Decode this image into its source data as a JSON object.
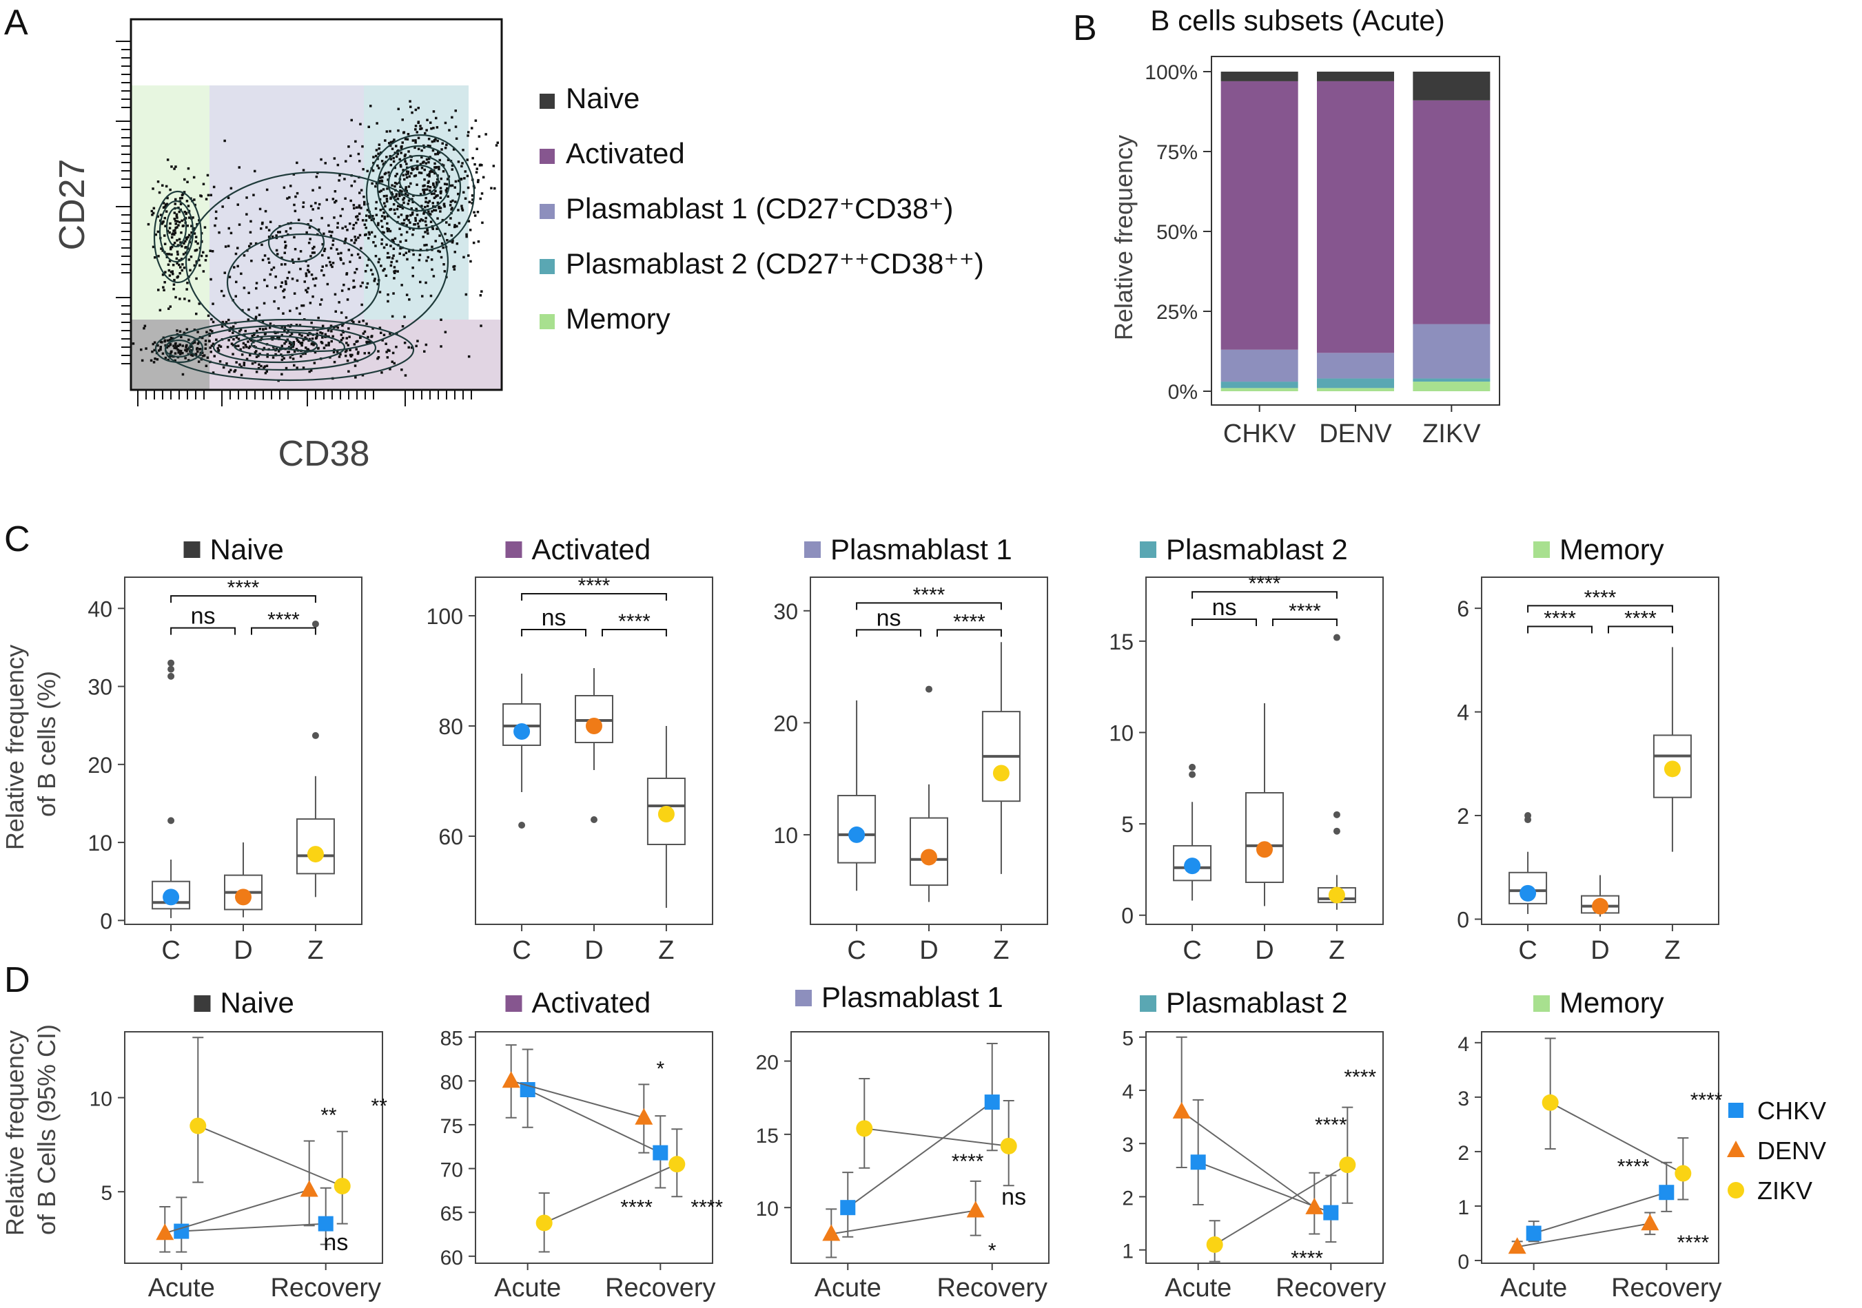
{
  "panel_letters": {
    "a": "A",
    "b": "B",
    "c": "C",
    "d": "D"
  },
  "colors": {
    "naive": "#3b3b3b",
    "activated": "#86568f",
    "plasmablast1": "#8d8fbd",
    "plasmablast2": "#5aa7b3",
    "memory": "#a8e08f",
    "chkv": "#1e8fef",
    "denv": "#f07b17",
    "zikv": "#fad314",
    "box": "#555555",
    "outlier": "#555555"
  },
  "chart_data": [
    {
      "id": "A",
      "type": "scatter",
      "title": "",
      "xlabel": "CD38",
      "ylabel": "CD27",
      "legend": {
        "placement": "right",
        "items": [
          {
            "key": "naive",
            "label": "Naive"
          },
          {
            "key": "activated",
            "label": "Activated"
          },
          {
            "key": "plasmablast1",
            "label": "Plasmablast 1 (CD27⁺CD38⁺)"
          },
          {
            "key": "plasmablast2",
            "label": "Plasmablast 2 (CD27⁺⁺CD38⁺⁺)"
          },
          {
            "key": "memory",
            "label": "Memory"
          }
        ]
      }
    },
    {
      "id": "B",
      "type": "bar",
      "stacked": true,
      "title": "B cells subsets (Acute)",
      "ylabel": "Relative frequency",
      "categories": [
        "CHKV",
        "DENV",
        "ZIKV"
      ],
      "yticks": [
        "0%",
        "25%",
        "50%",
        "75%",
        "100%"
      ],
      "ylim": [
        0,
        100
      ],
      "series": [
        {
          "name": "Memory",
          "key": "memory",
          "values": [
            1,
            1,
            3
          ]
        },
        {
          "name": "Plasmablast 2",
          "key": "plasmablast2",
          "values": [
            2,
            3,
            1
          ]
        },
        {
          "name": "Plasmablast 1",
          "key": "plasmablast1",
          "values": [
            10,
            8,
            17
          ]
        },
        {
          "name": "Activated",
          "key": "activated",
          "values": [
            84,
            85,
            70
          ]
        },
        {
          "name": "Naive",
          "key": "naive",
          "values": [
            3,
            3,
            9
          ]
        }
      ]
    },
    {
      "id": "C",
      "type": "box",
      "ylabel": "Relative frequency\nof B cells (%)",
      "categories": [
        "C",
        "D",
        "Z"
      ],
      "panels": [
        {
          "title": "Naive",
          "key": "naive",
          "ylim": [
            -0.5,
            44
          ],
          "yticks": [
            0,
            10,
            20,
            30,
            40
          ],
          "boxes": [
            {
              "min": 0.3,
              "q1": 1.5,
              "median": 2.3,
              "q3": 5,
              "max": 7.8,
              "mean": 3,
              "outliers": [
                12.8,
                31.3,
                32.2,
                33
              ]
            },
            {
              "min": 0.4,
              "q1": 1.4,
              "median": 3.6,
              "q3": 5.8,
              "max": 10,
              "mean": 3,
              "outliers": []
            },
            {
              "min": 3,
              "q1": 6,
              "median": 8.3,
              "q3": 13,
              "max": 18.5,
              "mean": 8.5,
              "outliers": [
                23.7,
                38
              ]
            }
          ],
          "brackets": [
            {
              "from": 0,
              "to": 2,
              "value": 41.6,
              "label": "****"
            },
            {
              "from": 0,
              "to": 1,
              "value": 37.5,
              "label": "ns"
            },
            {
              "from": 1,
              "to": 2,
              "value": 37.5,
              "label": "****"
            }
          ]
        },
        {
          "title": "Activated",
          "key": "activated",
          "ylim": [
            44,
            107
          ],
          "yticks": [
            60,
            80,
            100
          ],
          "boxes": [
            {
              "min": 68,
              "q1": 76.5,
              "median": 80,
              "q3": 84,
              "max": 89.5,
              "mean": 79,
              "outliers": [
                62
              ]
            },
            {
              "min": 72,
              "q1": 77,
              "median": 81,
              "q3": 85.5,
              "max": 90.5,
              "mean": 80,
              "outliers": [
                63
              ]
            },
            {
              "min": 47,
              "q1": 58.5,
              "median": 65.5,
              "q3": 70.5,
              "max": 80,
              "mean": 64,
              "outliers": []
            }
          ],
          "brackets": [
            {
              "from": 0,
              "to": 2,
              "value": 104,
              "label": "****"
            },
            {
              "from": 0,
              "to": 1,
              "value": 97.5,
              "label": "ns"
            },
            {
              "from": 1,
              "to": 2,
              "value": 97.5,
              "label": "****"
            }
          ]
        },
        {
          "title": "Plasmablast  1",
          "key": "plasmablast1",
          "ylim": [
            2,
            33
          ],
          "yticks": [
            10,
            20,
            30
          ],
          "boxes": [
            {
              "min": 5,
              "q1": 7.5,
              "median": 10,
              "q3": 13.5,
              "max": 22,
              "mean": 10,
              "outliers": []
            },
            {
              "min": 4,
              "q1": 5.5,
              "median": 7.8,
              "q3": 11.5,
              "max": 14.5,
              "mean": 8,
              "outliers": [
                23
              ]
            },
            {
              "min": 6.5,
              "q1": 13,
              "median": 17,
              "q3": 21,
              "max": 27.2,
              "mean": 15.5,
              "outliers": []
            }
          ],
          "brackets": [
            {
              "from": 0,
              "to": 2,
              "value": 30.7,
              "label": "****"
            },
            {
              "from": 0,
              "to": 1,
              "value": 28.3,
              "label": "ns"
            },
            {
              "from": 1,
              "to": 2,
              "value": 28.3,
              "label": "****"
            }
          ]
        },
        {
          "title": "Plasmablast  2",
          "key": "plasmablast2",
          "ylim": [
            -0.5,
            18.5
          ],
          "yticks": [
            0,
            5,
            10,
            15
          ],
          "boxes": [
            {
              "min": 0.8,
              "q1": 1.9,
              "median": 2.6,
              "q3": 3.8,
              "max": 6.2,
              "mean": 2.7,
              "outliers": [
                7.7,
                8.1
              ]
            },
            {
              "min": 0.5,
              "q1": 1.8,
              "median": 3.8,
              "q3": 6.7,
              "max": 11.6,
              "mean": 3.6,
              "outliers": []
            },
            {
              "min": 0.3,
              "q1": 0.7,
              "median": 0.9,
              "q3": 1.5,
              "max": 2.2,
              "mean": 1.1,
              "outliers": [
                4.6,
                5.5,
                15.2
              ]
            }
          ],
          "brackets": [
            {
              "from": 0,
              "to": 2,
              "value": 17.7,
              "label": "****"
            },
            {
              "from": 0,
              "to": 1,
              "value": 16.2,
              "label": "ns"
            },
            {
              "from": 1,
              "to": 2,
              "value": 16.2,
              "label": "****"
            }
          ]
        },
        {
          "title": "Memory",
          "key": "memory",
          "ylim": [
            -0.1,
            6.6
          ],
          "yticks": [
            0,
            2,
            4,
            6
          ],
          "boxes": [
            {
              "min": 0.1,
              "q1": 0.3,
              "median": 0.55,
              "q3": 0.9,
              "max": 1.3,
              "mean": 0.5,
              "outliers": [
                1.92,
                2
              ]
            },
            {
              "min": 0.05,
              "q1": 0.12,
              "median": 0.25,
              "q3": 0.45,
              "max": 0.85,
              "mean": 0.25,
              "outliers": []
            },
            {
              "min": 1.3,
              "q1": 2.35,
              "median": 3.15,
              "q3": 3.55,
              "max": 5.25,
              "mean": 2.9,
              "outliers": []
            }
          ],
          "brackets": [
            {
              "from": 0,
              "to": 2,
              "value": 6.05,
              "label": "****"
            },
            {
              "from": 0,
              "to": 1,
              "value": 5.65,
              "label": "****"
            },
            {
              "from": 1,
              "to": 2,
              "value": 5.65,
              "label": "****"
            }
          ]
        }
      ]
    },
    {
      "id": "D",
      "type": "line",
      "ylabel": "Relative frequency\nof B Cells (95% CI)",
      "categories": [
        "Acute",
        "Recovery"
      ],
      "legend": {
        "placement": "right",
        "items": [
          {
            "key": "chkv",
            "label": "CHKV",
            "shape": "square"
          },
          {
            "key": "denv",
            "label": "DENV",
            "shape": "triangle"
          },
          {
            "key": "zikv",
            "label": "ZIKV",
            "shape": "circle"
          }
        ]
      },
      "panels": [
        {
          "title": "Naive",
          "key": "naive",
          "ylim": [
            1.2,
            13.5
          ],
          "yticks": [
            5,
            10
          ],
          "series": [
            {
              "name": "CHKV",
              "key": "chkv",
              "shape": "square",
              "values": [
                2.9,
                3.3
              ],
              "ci": [
                [
                  1.8,
                  4.7
                ],
                [
                  2.2,
                  5.2
                ]
              ]
            },
            {
              "name": "DENV",
              "key": "denv",
              "shape": "triangle",
              "values": [
                2.8,
                5.1
              ],
              "ci": [
                [
                  1.8,
                  4.2
                ],
                [
                  3.2,
                  7.7
                ]
              ]
            },
            {
              "name": "ZIKV",
              "key": "zikv",
              "shape": "circle",
              "values": [
                8.5,
                5.3
              ],
              "ci": [
                [
                  5.5,
                  13.2
                ],
                [
                  3.3,
                  8.2
                ]
              ]
            }
          ],
          "annotations": [
            {
              "text": "**",
              "x": 1.02,
              "y": 8.7
            },
            {
              "text": "**",
              "x": 1.37,
              "y": 9.2
            },
            {
              "text": "ns",
              "x": 1.07,
              "y": 1.9
            }
          ]
        },
        {
          "title": "Activated",
          "key": "activated",
          "ylim": [
            59.2,
            85.6
          ],
          "yticks": [
            60,
            65,
            70,
            75,
            80,
            85
          ],
          "series": [
            {
              "name": "CHKV",
              "key": "chkv",
              "shape": "square",
              "values": [
                79,
                71.8
              ],
              "ci": [
                [
                  74.7,
                  83.6
                ],
                [
                  67.8,
                  76
                ]
              ]
            },
            {
              "name": "DENV",
              "key": "denv",
              "shape": "triangle",
              "values": [
                80,
                75.8
              ],
              "ci": [
                [
                  75.8,
                  84.1
                ],
                [
                  71.8,
                  79.6
                ]
              ]
            },
            {
              "name": "ZIKV",
              "key": "zikv",
              "shape": "circle",
              "values": [
                63.8,
                70.5
              ],
              "ci": [
                [
                  60.5,
                  67.2
                ],
                [
                  66.8,
                  74.5
                ]
              ]
            }
          ],
          "annotations": [
            {
              "text": "*",
              "x": 1.0,
              "y": 80.6
            },
            {
              "text": "****",
              "x": 0.82,
              "y": 64.8
            },
            {
              "text": "****",
              "x": 1.35,
              "y": 64.8
            }
          ]
        },
        {
          "title": "Plasmablast  1",
          "key": "plasmablast1",
          "ylim": [
            6.2,
            22
          ],
          "yticks": [
            10,
            15,
            20
          ],
          "series": [
            {
              "name": "CHKV",
              "key": "chkv",
              "shape": "square",
              "values": [
                10,
                17.2
              ],
              "ci": [
                [
                  8,
                  12.4
                ],
                [
                  13.9,
                  21.2
                ]
              ]
            },
            {
              "name": "DENV",
              "key": "denv",
              "shape": "triangle",
              "values": [
                8.2,
                9.8
              ],
              "ci": [
                [
                  6.6,
                  9.9
                ],
                [
                  8.1,
                  11.8
                ]
              ]
            },
            {
              "name": "ZIKV",
              "key": "zikv",
              "shape": "circle",
              "values": [
                15.4,
                14.2
              ],
              "ci": [
                [
                  12.7,
                  18.8
                ],
                [
                  11.5,
                  17.3
                ]
              ]
            }
          ],
          "annotations": [
            {
              "text": "****",
              "x": 0.83,
              "y": 12.7
            },
            {
              "text": "ns",
              "x": 1.15,
              "y": 10.2
            },
            {
              "text": "*",
              "x": 1.0,
              "y": 6.6
            }
          ]
        },
        {
          "title": "Plasmablast  2",
          "key": "plasmablast2",
          "ylim": [
            0.75,
            5.1
          ],
          "yticks": [
            1,
            2,
            3,
            4,
            5
          ],
          "series": [
            {
              "name": "CHKV",
              "key": "chkv",
              "shape": "square",
              "values": [
                2.65,
                1.7
              ],
              "ci": [
                [
                  1.85,
                  3.82
                ],
                [
                  1.15,
                  2.4
                ]
              ]
            },
            {
              "name": "DENV",
              "key": "denv",
              "shape": "triangle",
              "values": [
                3.6,
                1.8
              ],
              "ci": [
                [
                  2.55,
                  5.0
                ],
                [
                  1.3,
                  2.45
                ]
              ]
            },
            {
              "name": "ZIKV",
              "key": "zikv",
              "shape": "circle",
              "values": [
                1.1,
                2.6
              ],
              "ci": [
                [
                  0.78,
                  1.55
                ],
                [
                  1.88,
                  3.68
                ]
              ]
            }
          ],
          "annotations": [
            {
              "text": "****",
              "x": 1.22,
              "y": 4.12
            },
            {
              "text": "****",
              "x": 1.0,
              "y": 3.22
            },
            {
              "text": "****",
              "x": 0.82,
              "y": 0.72
            }
          ]
        },
        {
          "title": "Memory",
          "key": "memory",
          "ylim": [
            -0.05,
            4.2
          ],
          "yticks": [
            0,
            1,
            2,
            3,
            4
          ],
          "series": [
            {
              "name": "CHKV",
              "key": "chkv",
              "shape": "square",
              "values": [
                0.5,
                1.25
              ],
              "ci": [
                [
                  0.35,
                  0.72
                ],
                [
                  0.9,
                  1.8
                ]
              ]
            },
            {
              "name": "DENV",
              "key": "denv",
              "shape": "triangle",
              "values": [
                0.25,
                0.68
              ],
              "ci": [
                [
                  0.15,
                  0.35
                ],
                [
                  0.48,
                  0.88
                ]
              ]
            },
            {
              "name": "ZIKV",
              "key": "zikv",
              "shape": "circle",
              "values": [
                2.9,
                1.6
              ],
              "ci": [
                [
                  2.05,
                  4.08
                ],
                [
                  1.12,
                  2.25
                ]
              ]
            }
          ],
          "annotations": [
            {
              "text": "****",
              "x": 1.3,
              "y": 2.82
            },
            {
              "text": "****",
              "x": 0.75,
              "y": 1.6
            },
            {
              "text": "****",
              "x": 1.2,
              "y": 0.2
            }
          ]
        }
      ]
    }
  ]
}
